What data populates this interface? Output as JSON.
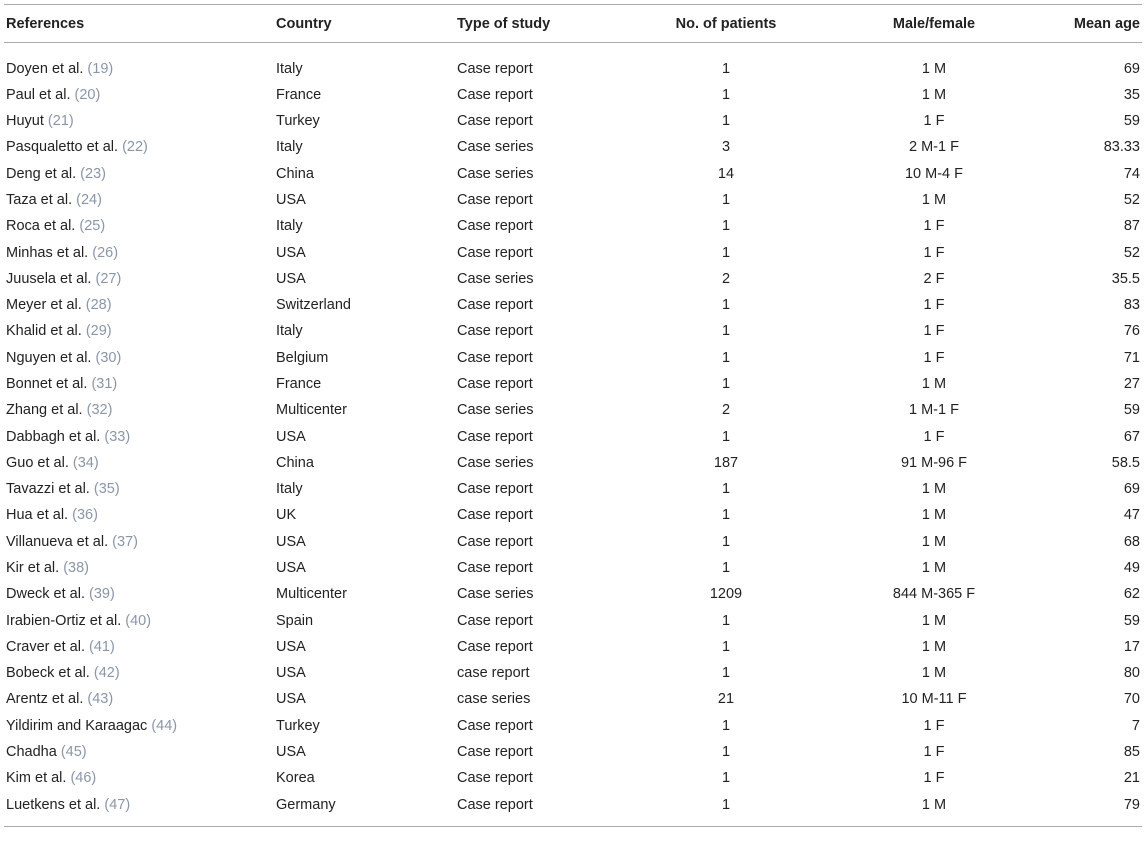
{
  "table": {
    "header": [
      "References",
      "Country",
      "Type of study",
      "No. of patients",
      "Male/female",
      "Mean age"
    ],
    "rows": [
      [
        {
          "author": "Doyen et al.",
          "ref": "(19)"
        },
        "Italy",
        "Case report",
        1,
        "1 M",
        69
      ],
      [
        {
          "author": "Paul et al.",
          "ref": "(20)"
        },
        "France",
        "Case report",
        1,
        "1 M",
        35
      ],
      [
        {
          "author": "Huyut",
          "ref": "(21)"
        },
        "Turkey",
        "Case report",
        1,
        "1 F",
        59
      ],
      [
        {
          "author": "Pasqualetto et al.",
          "ref": "(22)"
        },
        "Italy",
        "Case series",
        3,
        "2 M-1 F",
        83.33
      ],
      [
        {
          "author": "Deng et al.",
          "ref": "(23)"
        },
        "China",
        "Case series",
        14,
        "10 M-4 F",
        74
      ],
      [
        {
          "author": "Taza et al.",
          "ref": "(24)"
        },
        "USA",
        "Case report",
        1,
        "1 M",
        52
      ],
      [
        {
          "author": "Roca et al.",
          "ref": "(25)"
        },
        "Italy",
        "Case report",
        1,
        "1 F",
        87
      ],
      [
        {
          "author": "Minhas et al.",
          "ref": "(26)"
        },
        "USA",
        "Case report",
        1,
        "1 F",
        52
      ],
      [
        {
          "author": "Juusela et al.",
          "ref": "(27)"
        },
        "USA",
        "Case series",
        2,
        "2 F",
        35.5
      ],
      [
        {
          "author": "Meyer et al.",
          "ref": "(28)"
        },
        "Switzerland",
        "Case report",
        1,
        "1 F",
        83
      ],
      [
        {
          "author": "Khalid et al.",
          "ref": "(29)"
        },
        "Italy",
        "Case report",
        1,
        "1 F",
        76
      ],
      [
        {
          "author": "Nguyen et al.",
          "ref": "(30)"
        },
        "Belgium",
        "Case report",
        1,
        "1 F",
        71
      ],
      [
        {
          "author": "Bonnet et al.",
          "ref": "(31)"
        },
        "France",
        "Case report",
        1,
        "1 M",
        27
      ],
      [
        {
          "author": "Zhang et al.",
          "ref": "(32)"
        },
        "Multicenter",
        "Case series",
        2,
        "1 M-1 F",
        59
      ],
      [
        {
          "author": "Dabbagh et al.",
          "ref": "(33)"
        },
        "USA",
        "Case report",
        1,
        "1 F",
        67
      ],
      [
        {
          "author": "Guo et al.",
          "ref": "(34)"
        },
        "China",
        "Case series",
        187,
        "91 M-96 F",
        58.5
      ],
      [
        {
          "author": "Tavazzi et al.",
          "ref": "(35)"
        },
        "Italy",
        "Case report",
        1,
        "1 M",
        69
      ],
      [
        {
          "author": "Hua et al.",
          "ref": "(36)"
        },
        "UK",
        "Case report",
        1,
        "1 M",
        47
      ],
      [
        {
          "author": "Villanueva et al.",
          "ref": "(37)"
        },
        "USA",
        "Case report",
        1,
        "1 M",
        68
      ],
      [
        {
          "author": "Kir et al.",
          "ref": "(38)"
        },
        "USA",
        "Case report",
        1,
        "1 M",
        49
      ],
      [
        {
          "author": "Dweck et al.",
          "ref": "(39)"
        },
        "Multicenter",
        "Case series",
        1209,
        "844 M-365 F",
        62
      ],
      [
        {
          "author": "Irabien-Ortiz et al.",
          "ref": "(40)"
        },
        "Spain",
        "Case report",
        1,
        "1 M",
        59
      ],
      [
        {
          "author": "Craver et al.",
          "ref": "(41)"
        },
        "USA",
        "Case report",
        1,
        "1 M",
        17
      ],
      [
        {
          "author": "Bobeck et al.",
          "ref": "(42)"
        },
        "USA",
        "case report",
        1,
        "1 M",
        80
      ],
      [
        {
          "author": "Arentz et al.",
          "ref": "(43)"
        },
        "USA",
        "case series",
        21,
        "10 M-11 F",
        70
      ],
      [
        {
          "author": "Yildirim and Karaagac",
          "ref": "(44)"
        },
        "Turkey",
        "Case report",
        1,
        "1 F",
        7
      ],
      [
        {
          "author": "Chadha",
          "ref": "(45)"
        },
        "USA",
        "Case report",
        1,
        "1 F",
        85
      ],
      [
        {
          "author": "Kim et al.",
          "ref": "(46)"
        },
        "Korea",
        "Case report",
        1,
        "1 F",
        21
      ],
      [
        {
          "author": "Luetkens et al.",
          "ref": "(47)"
        },
        "Germany",
        "Case report",
        1,
        "1 M",
        79
      ]
    ]
  }
}
